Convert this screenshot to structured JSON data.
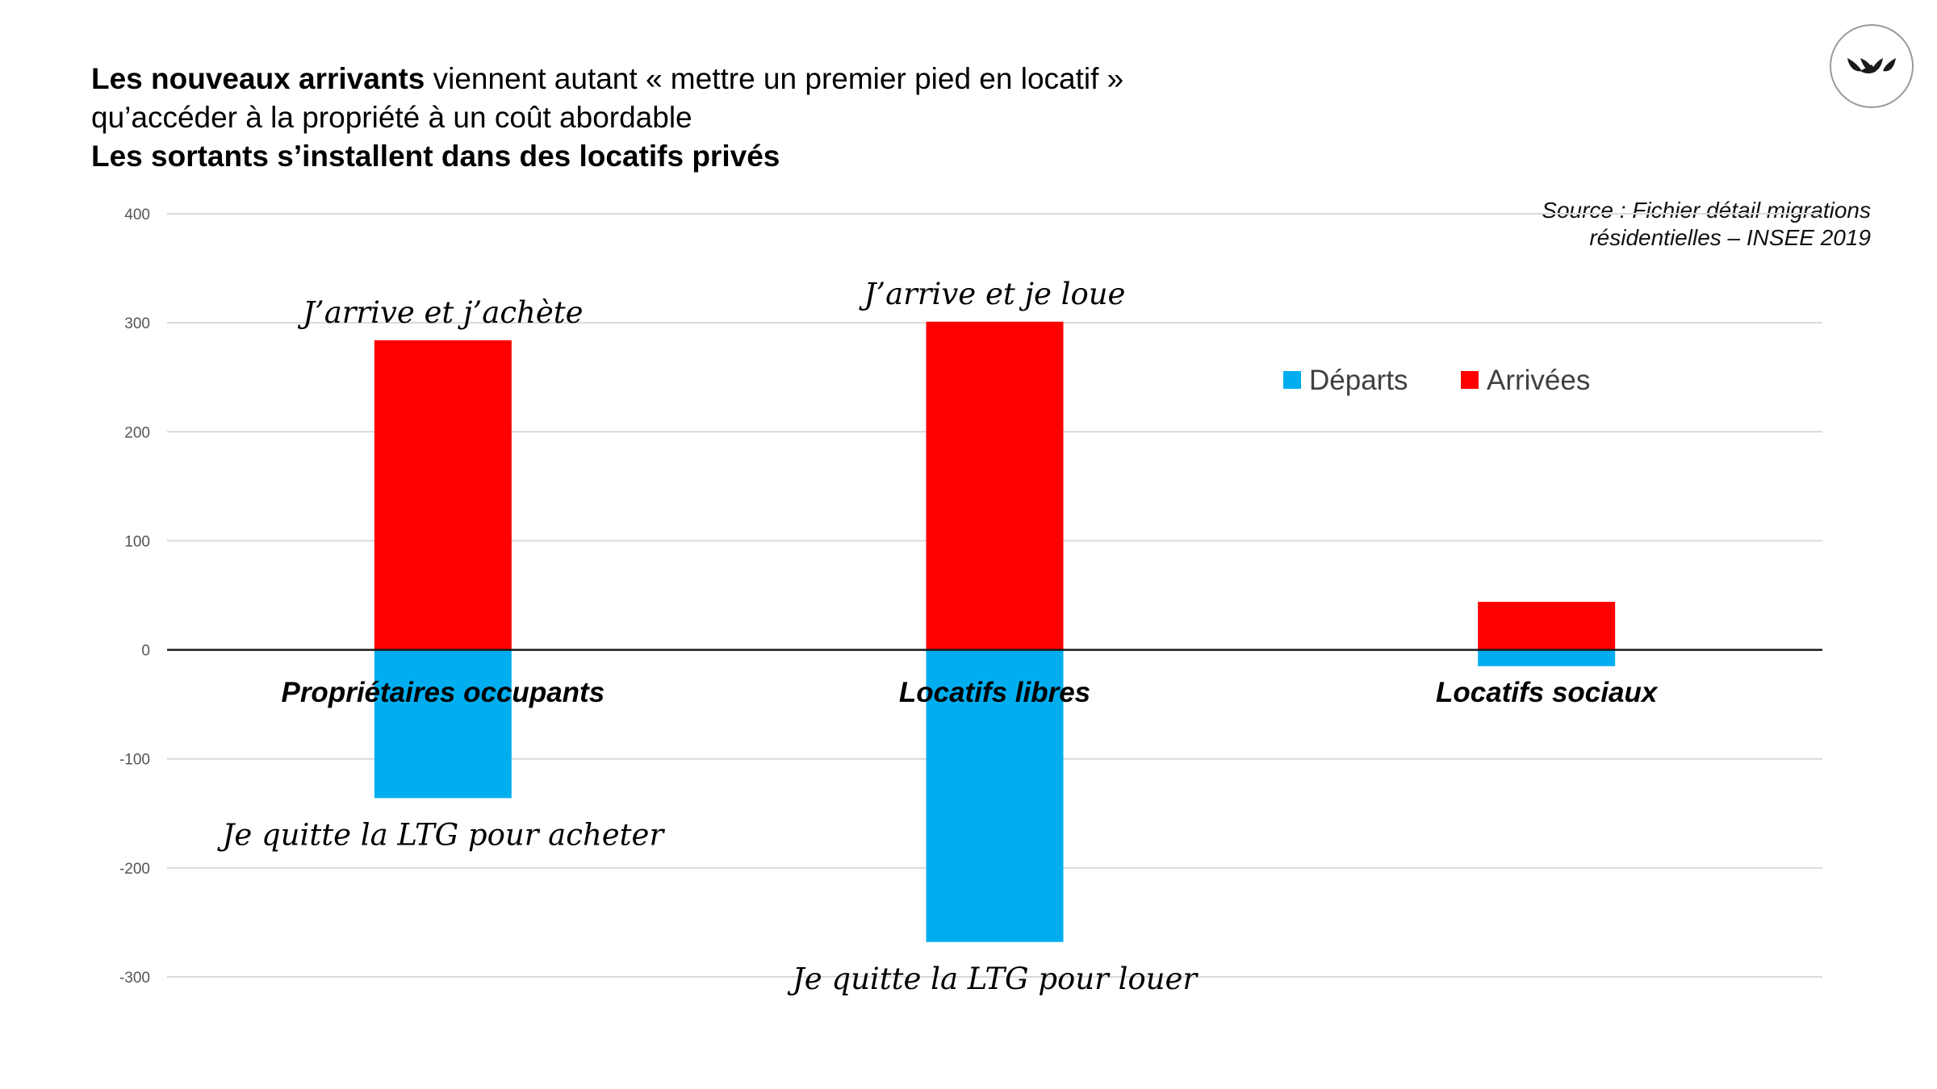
{
  "header": {
    "line1_bold": "Les nouveaux arrivants",
    "line1_rest": " viennent autant « mettre un premier pied en locatif »",
    "line2": "qu’accéder à la propriété à un coût abordable",
    "line3_bold": "Les sortants s’installent dans des locatifs privés"
  },
  "logo": {
    "icon": "tulip-logo-icon",
    "color": "#1a1a1a"
  },
  "source": {
    "line1": "Source : Fichier détail migrations",
    "line2": "résidentielles – INSEE 2019"
  },
  "chart_data": {
    "type": "bar",
    "categories": [
      "Propriétaires occupants",
      "Locatifs libres",
      "Locatifs sociaux"
    ],
    "series": [
      {
        "name": "Départs",
        "color": "#00AEEF",
        "values": [
          -136,
          -268,
          -15
        ]
      },
      {
        "name": "Arrivées",
        "color": "#FF0000",
        "values": [
          284,
          301,
          44
        ]
      }
    ],
    "ylim": [
      -300,
      400
    ],
    "yticks": [
      400,
      300,
      200,
      100,
      0,
      -100,
      -200,
      -300
    ],
    "grid": true,
    "legend_position": "top-right",
    "annotations": [
      {
        "category_index": 0,
        "side": "top",
        "text": "J’arrive et j’achète"
      },
      {
        "category_index": 1,
        "side": "top",
        "text": "J’arrive et je loue"
      },
      {
        "category_index": 0,
        "side": "bottom",
        "text": "Je quitte la LTG pour acheter"
      },
      {
        "category_index": 1,
        "side": "bottom",
        "text": "Je quitte la LTG pour louer"
      }
    ]
  }
}
